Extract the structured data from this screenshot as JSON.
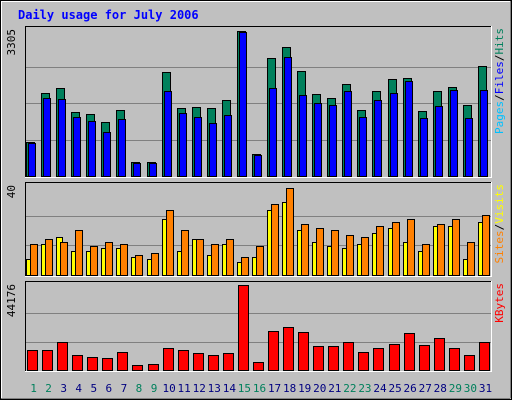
{
  "chart_data": {
    "type": "bar",
    "title": "Daily usage for July 2006",
    "colors": {
      "hits": "#00805c",
      "files": "#0000ff",
      "pages": "#00c0ff",
      "visits": "#ffff00",
      "sites": "#ff8000",
      "kbytes": "#ff0000",
      "weekday_label": "#000080",
      "weekend_label": "#00805c",
      "title": "#0000ff"
    },
    "categories": [
      "1",
      "2",
      "3",
      "4",
      "5",
      "6",
      "7",
      "8",
      "9",
      "10",
      "11",
      "12",
      "13",
      "14",
      "15",
      "16",
      "17",
      "18",
      "19",
      "20",
      "21",
      "22",
      "23",
      "24",
      "25",
      "26",
      "27",
      "28",
      "29",
      "30",
      "31"
    ],
    "weekend": [
      true,
      true,
      false,
      false,
      false,
      false,
      false,
      true,
      true,
      false,
      false,
      false,
      false,
      false,
      true,
      true,
      false,
      false,
      false,
      false,
      false,
      true,
      true,
      false,
      false,
      false,
      false,
      false,
      true,
      true,
      false
    ],
    "panels": [
      {
        "id": "requests",
        "ymax_label": "3305",
        "ylim": [
          0,
          3305
        ],
        "legend": [
          {
            "text": "Pages",
            "color_key": "pages"
          },
          {
            "text": "/",
            "color_key": "sep"
          },
          {
            "text": "Files",
            "color_key": "files"
          },
          {
            "text": "/",
            "color_key": "sep"
          },
          {
            "text": "Hits",
            "color_key": "hits"
          }
        ],
        "series": [
          {
            "name": "Hits",
            "color_key": "hits",
            "values": [
              760,
              1870,
              1990,
              1450,
              1400,
              1230,
              1500,
              310,
              320,
              2350,
              1550,
              1560,
              1550,
              1730,
              3290,
              500,
              2660,
              2920,
              2380,
              1860,
              1760,
              2080,
              1500,
              1930,
              2200,
              2220,
              1480,
              1930,
              2020,
              1600,
              2490
            ]
          },
          {
            "name": "Files",
            "color_key": "files",
            "values": [
              740,
              1760,
              1750,
              1340,
              1240,
              1000,
              1300,
              290,
              300,
              1920,
              1420,
              1330,
              1190,
              1380,
              3270,
              480,
              1990,
              2700,
              1840,
              1660,
              1600,
              1920,
              1330,
              1710,
              1890,
              2140,
              1320,
              1590,
              1950,
              1310,
              1950
            ]
          },
          {
            "name": "Pages",
            "color_key": "pages",
            "values": [
              0,
              0,
              0,
              0,
              0,
              0,
              0,
              0,
              0,
              0,
              0,
              0,
              0,
              0,
              0,
              0,
              0,
              0,
              0,
              0,
              0,
              0,
              0,
              0,
              0,
              0,
              0,
              0,
              0,
              0,
              0
            ]
          }
        ]
      },
      {
        "id": "visitors",
        "ymax_label": "40",
        "ylim": [
          0,
          40
        ],
        "legend": [
          {
            "text": "Sites",
            "color_key": "sites"
          },
          {
            "text": "/",
            "color_key": "sep"
          },
          {
            "text": "Visits",
            "color_key": "visits"
          }
        ],
        "series": [
          {
            "name": "Visits",
            "color_key": "visits",
            "values": [
              7,
              14,
              17,
              11,
              11,
              12,
              12,
              8,
              7,
              25,
              11,
              16,
              9,
              14,
              6,
              8,
              29,
              33,
              20,
              15,
              13,
              12,
              14,
              19,
              21,
              15,
              11,
              22,
              22,
              7,
              24
            ]
          },
          {
            "name": "Sites",
            "color_key": "sites",
            "values": [
              14,
              16,
              15,
              20,
              13,
              15,
              14,
              9,
              10,
              29,
              20,
              16,
              14,
              16,
              8,
              13,
              32,
              39,
              23,
              21,
              20,
              18,
              17,
              22,
              24,
              25,
              14,
              23,
              25,
              15,
              27
            ]
          }
        ]
      },
      {
        "id": "volume",
        "ymax_label": "44176",
        "ylim": [
          0,
          44176
        ],
        "legend": [
          {
            "text": "KBytes",
            "color_key": "kbytes"
          }
        ],
        "series": [
          {
            "name": "KBytes",
            "color_key": "kbytes",
            "values": [
              10200,
              10200,
              14300,
              8000,
              7000,
              6300,
              9500,
              2800,
              3000,
              11300,
              10300,
              8800,
              7900,
              8800,
              44100,
              4000,
              20500,
              22500,
              19800,
              12400,
              12400,
              14300,
              9400,
              11200,
              13400,
              19000,
              13200,
              16400,
              11300,
              8000,
              14300
            ]
          }
        ]
      }
    ]
  }
}
